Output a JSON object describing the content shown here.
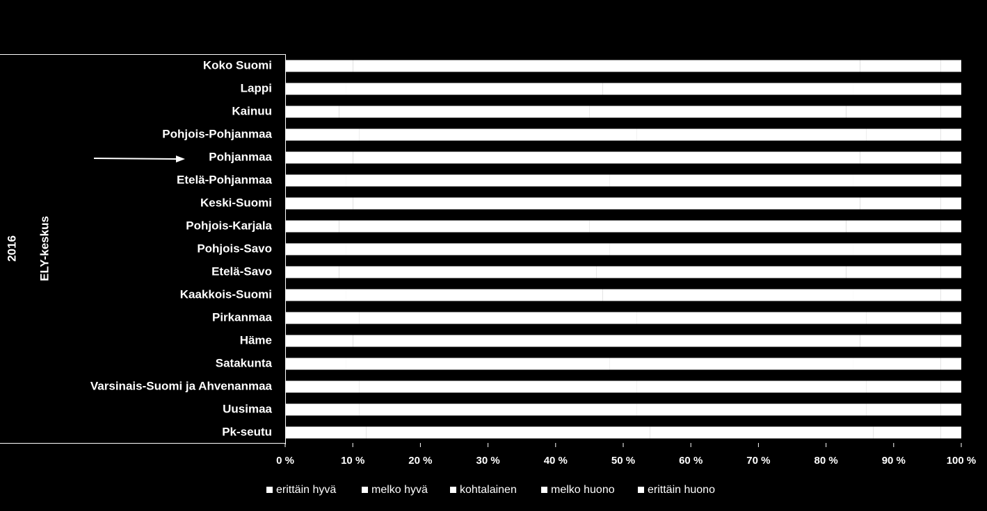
{
  "chart_data": {
    "type": "stacked_barh",
    "year_label": "2016",
    "ylabel": "ELY-keskus",
    "categories": [
      "Koko Suomi",
      "Lappi",
      "Kainuu",
      "Pohjois-Pohjanmaa",
      "Pohjanmaa",
      "Etelä-Pohjanmaa",
      "Keski-Suomi",
      "Pohjois-Karjala",
      "Pohjois-Savo",
      "Etelä-Savo",
      "Kaakkois-Suomi",
      "Pirkanmaa",
      "Häme",
      "Satakunta",
      "Varsinais-Suomi ja Ahvenanmaa",
      "Uusimaa",
      "Pk-seutu"
    ],
    "series": [
      {
        "name": "erittäin hyvä",
        "color": "#ffffff",
        "values": [
          10,
          9,
          8,
          11,
          10,
          9,
          10,
          8,
          9,
          8,
          9,
          11,
          10,
          9,
          11,
          11,
          12
        ]
      },
      {
        "name": "melko hyvä",
        "color": "#ffffff",
        "values": [
          40,
          38,
          37,
          41,
          40,
          39,
          40,
          37,
          39,
          38,
          38,
          41,
          40,
          39,
          41,
          41,
          42
        ]
      },
      {
        "name": "kohtalainen",
        "color": "#ffffff",
        "values": [
          35,
          37,
          38,
          34,
          35,
          36,
          35,
          38,
          36,
          37,
          37,
          34,
          35,
          36,
          34,
          34,
          33
        ]
      },
      {
        "name": "melko huono",
        "color": "#ffffff",
        "values": [
          12,
          13,
          14,
          11,
          12,
          13,
          12,
          14,
          13,
          14,
          13,
          11,
          12,
          13,
          11,
          11,
          10
        ]
      },
      {
        "name": "erittäin huono",
        "color": "#ffffff",
        "values": [
          3,
          3,
          3,
          3,
          3,
          3,
          3,
          3,
          3,
          3,
          3,
          3,
          3,
          3,
          3,
          3,
          3
        ]
      }
    ],
    "xlim": [
      0,
      100
    ],
    "xticks": [
      {
        "value": 0,
        "label": "0 %"
      },
      {
        "value": 10,
        "label": "10 %"
      },
      {
        "value": 20,
        "label": "20 %"
      },
      {
        "value": 30,
        "label": "30 %"
      },
      {
        "value": 40,
        "label": "40 %"
      },
      {
        "value": 50,
        "label": "50 %"
      },
      {
        "value": 60,
        "label": "60 %"
      },
      {
        "value": 70,
        "label": "70 %"
      },
      {
        "value": 80,
        "label": "80 %"
      },
      {
        "value": 90,
        "label": "90 %"
      },
      {
        "value": 100,
        "label": "100 %"
      }
    ],
    "legend": "bottom"
  }
}
